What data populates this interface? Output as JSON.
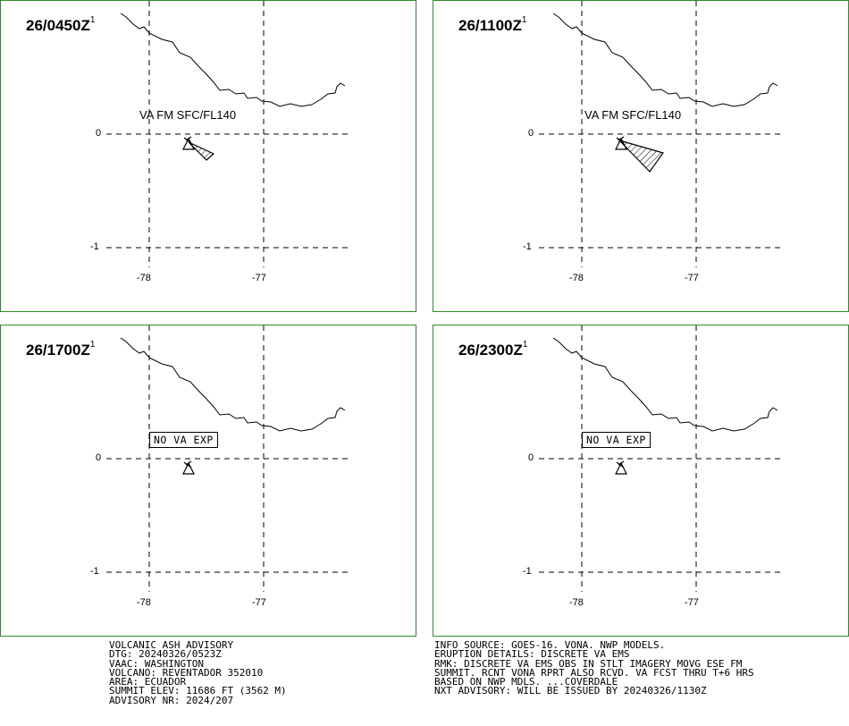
{
  "panels": [
    {
      "time": "26/0450Z",
      "sup": "1",
      "label": "VA FM SFC/FL140",
      "label_type": "va",
      "ash": "small"
    },
    {
      "time": "26/1100Z",
      "sup": "1",
      "label": "VA FM SFC/FL140",
      "label_type": "va",
      "ash": "large"
    },
    {
      "time": "26/1700Z",
      "sup": "1",
      "label": "NO VA EXP",
      "label_type": "none",
      "ash": "none"
    },
    {
      "time": "26/2300Z",
      "sup": "1",
      "label": "NO VA EXP",
      "label_type": "none",
      "ash": "none"
    }
  ],
  "grid": {
    "lat_labels": [
      "0",
      "-1"
    ],
    "lon_labels": [
      "-78",
      "-77"
    ]
  },
  "advisory_left": [
    "VOLCANIC ASH ADVISORY",
    "DTG: 20240326/0523Z",
    "VAAC: WASHINGTON",
    "VOLCANO: REVENTADOR 352010",
    "AREA: ECUADOR",
    "SUMMIT ELEV: 11686 FT (3562 M)",
    "ADVISORY NR: 2024/207"
  ],
  "advisory_right": [
    "INFO SOURCE: GOES-16. VONA. NWP MODELS.",
    "ERUPTION DETAILS: DISCRETE VA EMS",
    "RMK: DISCRETE VA EMS OBS IN STLT IMAGERY MOVG ESE FM",
    "SUMMIT. RCNT VONA RPRT ALSO RCVD. VA FCST THRU T+6 HRS",
    "BASED ON NWP MDLS. ...COVERDALE",
    "NXT ADVISORY: WILL BE ISSUED BY 20240326/1130Z"
  ],
  "colors": {
    "border": "#2e8b2e",
    "ink": "#000000"
  }
}
